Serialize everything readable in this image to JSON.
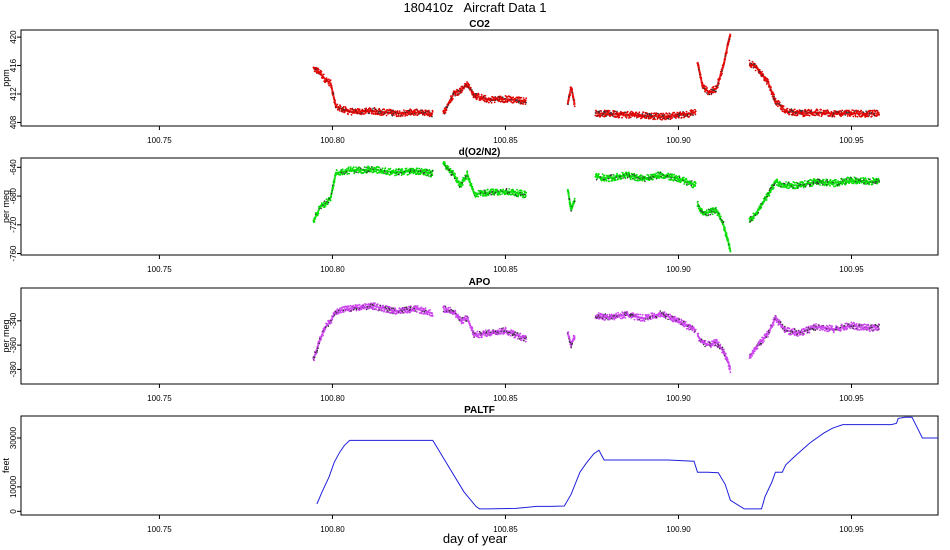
{
  "page": {
    "title": "180410z   Aircraft Data 1",
    "xlabel": "day of year"
  },
  "chart_data": [
    {
      "type": "scatter",
      "title": "CO2",
      "ylabel": "ppm",
      "color": "#e00000",
      "xlim": [
        100.71,
        100.975
      ],
      "ylim": [
        407.5,
        421
      ],
      "xticks": [
        100.75,
        100.8,
        100.85,
        100.9,
        100.95
      ],
      "xtick_labels": [
        "100.75",
        "100.80",
        "100.85",
        "100.90",
        "100.95"
      ],
      "yticks": [
        408,
        412,
        416,
        420
      ],
      "ytick_labels": [
        "408",
        "412",
        "416",
        "420"
      ],
      "segments": [
        {
          "x": [
            100.7945,
            100.7965,
            100.798,
            100.7995,
            100.801,
            100.805,
            100.812,
            100.818,
            100.824,
            100.829
          ],
          "y": [
            415.6,
            415.0,
            414.0,
            413.5,
            410.2,
            409.5,
            409.6,
            409.3,
            409.4,
            409.2
          ]
        },
        {
          "x": [
            100.832,
            100.835,
            100.837,
            100.839,
            100.841,
            100.845,
            100.85,
            100.856
          ],
          "y": [
            409.2,
            412.0,
            412.5,
            413.4,
            411.8,
            411.2,
            411.3,
            411.0
          ]
        },
        {
          "x": [
            100.868,
            100.869,
            100.87
          ],
          "y": [
            410.6,
            413.0,
            410.5
          ]
        },
        {
          "x": [
            100.876,
            100.88,
            100.885,
            100.89,
            100.895,
            100.9,
            100.905
          ],
          "y": [
            409.3,
            409.2,
            409.1,
            409.0,
            408.8,
            409.0,
            409.4
          ]
        },
        {
          "x": [
            100.9055,
            100.907,
            100.909,
            100.911,
            100.913,
            100.9145,
            100.915
          ],
          "y": [
            416.5,
            413.0,
            412.2,
            412.8,
            416.0,
            419.5,
            420.5
          ]
        },
        {
          "x": [
            100.9205,
            100.923,
            100.926,
            100.928,
            100.931,
            100.935,
            100.94,
            100.945,
            100.95,
            100.955,
            100.958
          ],
          "y": [
            416.4,
            415.5,
            413.5,
            411.0,
            409.6,
            409.3,
            409.4,
            409.2,
            409.3,
            409.2,
            409.3
          ]
        }
      ]
    },
    {
      "type": "scatter",
      "title": "d(O2/N2)",
      "ylabel": "per meg",
      "color": "#00dd00",
      "xlim": [
        100.71,
        100.975
      ],
      "ylim": [
        -762,
        -627
      ],
      "xticks": [
        100.75,
        100.8,
        100.85,
        100.9,
        100.95
      ],
      "xtick_labels": [
        "100.75",
        "100.80",
        "100.85",
        "100.90",
        "100.95"
      ],
      "yticks": [
        -760,
        -720,
        -680,
        -640
      ],
      "ytick_labels": [
        "-760",
        "-720",
        "-680",
        "-640"
      ],
      "segments": [
        {
          "x": [
            100.7945,
            100.7965,
            100.798,
            100.7995,
            100.801,
            100.805,
            100.812,
            100.818,
            100.824,
            100.829
          ],
          "y": [
            -715.0,
            -695.0,
            -690.0,
            -682.0,
            -648.0,
            -644.0,
            -643.0,
            -647.0,
            -645.0,
            -649.0
          ]
        },
        {
          "x": [
            100.832,
            100.835,
            100.837,
            100.839,
            100.841,
            100.845,
            100.85,
            100.856
          ],
          "y": [
            -635.0,
            -650.0,
            -665.0,
            -650.0,
            -677.0,
            -675.0,
            -673.0,
            -678.0
          ]
        },
        {
          "x": [
            100.868,
            100.869,
            100.87
          ],
          "y": [
            -670.0,
            -700.0,
            -685.0
          ]
        },
        {
          "x": [
            100.876,
            100.88,
            100.885,
            100.89,
            100.895,
            100.9,
            100.905
          ],
          "y": [
            -653.0,
            -655.0,
            -651.0,
            -656.0,
            -650.0,
            -656.0,
            -665.0
          ]
        },
        {
          "x": [
            100.9055,
            100.907,
            100.909,
            100.911,
            100.913,
            100.9145,
            100.915
          ],
          "y": [
            -690.0,
            -705.0,
            -702.0,
            -700.0,
            -720.0,
            -745.0,
            -757.0
          ]
        },
        {
          "x": [
            100.9205,
            100.923,
            100.926,
            100.928,
            100.931,
            100.935,
            100.94,
            100.945,
            100.95,
            100.955,
            100.958
          ],
          "y": [
            -715.0,
            -700.0,
            -678.0,
            -660.0,
            -665.0,
            -665.0,
            -660.0,
            -662.0,
            -658.0,
            -660.0,
            -658.0
          ]
        }
      ]
    },
    {
      "type": "scatter",
      "title": "APO",
      "ylabel": "per meg",
      "color": "#cc44ee",
      "xlim": [
        100.71,
        100.975
      ],
      "ylim": [
        -392,
        -313
      ],
      "xticks": [
        100.75,
        100.8,
        100.85,
        100.9,
        100.95
      ],
      "xtick_labels": [
        "100.75",
        "100.80",
        "100.85",
        "100.90",
        "100.95"
      ],
      "yticks": [
        -380,
        -360,
        -340
      ],
      "ytick_labels": [
        "-380",
        "-360",
        "-340"
      ],
      "segments": [
        {
          "x": [
            100.7945,
            100.7965,
            100.798,
            100.7995,
            100.801,
            100.805,
            100.812,
            100.818,
            100.824,
            100.829
          ],
          "y": [
            -372.0,
            -355.0,
            -345.0,
            -340.0,
            -332.0,
            -330.0,
            -328.0,
            -332.0,
            -330.0,
            -334.0
          ]
        },
        {
          "x": [
            100.832,
            100.835,
            100.837,
            100.839,
            100.841,
            100.845,
            100.85,
            100.856
          ],
          "y": [
            -330.0,
            -332.0,
            -340.0,
            -338.0,
            -352.0,
            -350.0,
            -348.0,
            -355.0
          ]
        },
        {
          "x": [
            100.868,
            100.869,
            100.87
          ],
          "y": [
            -350.0,
            -360.0,
            -352.0
          ]
        },
        {
          "x": [
            100.876,
            100.88,
            100.885,
            100.89,
            100.895,
            100.9,
            100.905
          ],
          "y": [
            -336.0,
            -337.0,
            -335.0,
            -338.0,
            -334.0,
            -340.0,
            -348.0
          ]
        },
        {
          "x": [
            100.9055,
            100.907,
            100.909,
            100.911,
            100.913,
            100.9145,
            100.915
          ],
          "y": [
            -352.0,
            -358.0,
            -360.0,
            -358.0,
            -365.0,
            -375.0,
            -380.0
          ]
        },
        {
          "x": [
            100.9205,
            100.923,
            100.926,
            100.928,
            100.931,
            100.935,
            100.94,
            100.945,
            100.95,
            100.955,
            100.958
          ],
          "y": [
            -370.0,
            -360.0,
            -350.0,
            -338.0,
            -348.0,
            -350.0,
            -345.0,
            -347.0,
            -344.0,
            -346.0,
            -345.0
          ]
        }
      ]
    },
    {
      "type": "line",
      "title": "PALTF",
      "ylabel": "feet",
      "color": "#2020dd",
      "xlim": [
        100.71,
        100.975
      ],
      "ylim": [
        -1500,
        39000
      ],
      "xticks": [
        100.75,
        100.8,
        100.85,
        100.9,
        100.95
      ],
      "xtick_labels": [
        "100.75",
        "100.80",
        "100.85",
        "100.90",
        "100.95"
      ],
      "yticks": [
        0,
        10000,
        30000
      ],
      "ytick_labels": [
        "0",
        "10000",
        "30000"
      ],
      "x": [
        100.7955,
        100.797,
        100.799,
        100.8005,
        100.802,
        100.8035,
        100.805,
        100.812,
        100.8195,
        100.8265,
        100.829,
        100.832,
        100.838,
        100.8415,
        100.8425,
        100.845,
        100.853,
        100.855,
        100.859,
        100.863,
        100.867,
        100.869,
        100.8715,
        100.8735,
        100.8755,
        100.877,
        100.8785,
        100.885,
        100.891,
        100.897,
        100.9045,
        100.9055,
        100.9085,
        100.9115,
        100.9135,
        100.915,
        100.919,
        100.9205,
        100.9225,
        100.924,
        100.925,
        100.927,
        100.928,
        100.93,
        100.931,
        100.934,
        100.938,
        100.942,
        100.9445,
        100.9475,
        100.955,
        100.9615,
        100.963,
        100.9635,
        100.9655,
        100.9675,
        100.9705,
        100.975
      ],
      "y": [
        3000,
        8000,
        14000,
        20000,
        24000,
        27000,
        29000,
        29000,
        29000,
        29000,
        29000,
        22000,
        8000,
        2000,
        1000,
        1000,
        1200,
        1500,
        2000,
        2000,
        2200,
        7000,
        16000,
        20000,
        23500,
        25000,
        21000,
        21000,
        21000,
        21000,
        20500,
        16000,
        16000,
        15800,
        11000,
        4500,
        1000,
        1000,
        1000,
        1000,
        6000,
        12000,
        16000,
        16000,
        19000,
        23000,
        28000,
        32000,
        34000,
        35500,
        35500,
        35500,
        36000,
        38000,
        38500,
        38500,
        30000,
        30000
      ]
    }
  ]
}
